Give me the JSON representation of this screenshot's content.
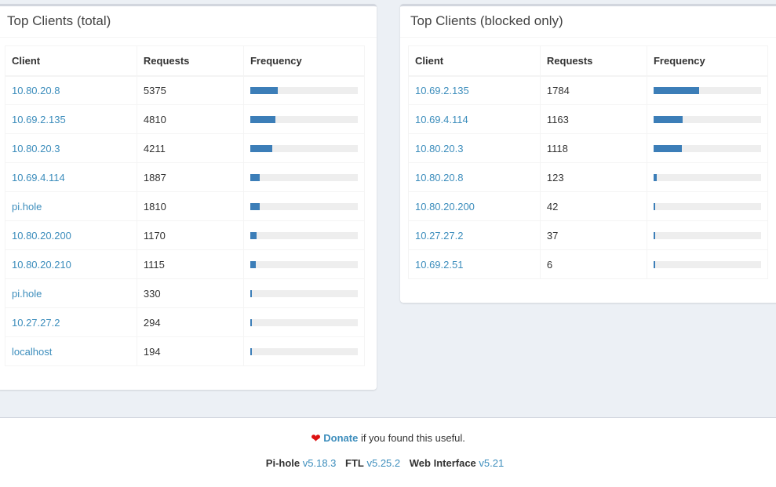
{
  "total": {
    "title": "Top Clients (total)",
    "headers": [
      "Client",
      "Requests",
      "Frequency"
    ],
    "rows": [
      {
        "client": "10.80.20.8",
        "requests": "5375",
        "frequency": 0.258
      },
      {
        "client": "10.69.2.135",
        "requests": "4810",
        "frequency": 0.231
      },
      {
        "client": "10.80.20.3",
        "requests": "4211",
        "frequency": 0.202
      },
      {
        "client": "10.69.4.114",
        "requests": "1887",
        "frequency": 0.091
      },
      {
        "client": "pi.hole",
        "requests": "1810",
        "frequency": 0.087
      },
      {
        "client": "10.80.20.200",
        "requests": "1170",
        "frequency": 0.056
      },
      {
        "client": "10.80.20.210",
        "requests": "1115",
        "frequency": 0.054
      },
      {
        "client": "pi.hole",
        "requests": "330",
        "frequency": 0.016
      },
      {
        "client": "10.27.27.2",
        "requests": "294",
        "frequency": 0.014
      },
      {
        "client": "localhost",
        "requests": "194",
        "frequency": 0.009
      }
    ]
  },
  "blocked": {
    "title": "Top Clients (blocked only)",
    "headers": [
      "Client",
      "Requests",
      "Frequency"
    ],
    "rows": [
      {
        "client": "10.69.2.135",
        "requests": "1784",
        "frequency": 0.42
      },
      {
        "client": "10.69.4.114",
        "requests": "1163",
        "frequency": 0.273
      },
      {
        "client": "10.80.20.3",
        "requests": "1118",
        "frequency": 0.263
      },
      {
        "client": "10.80.20.8",
        "requests": "123",
        "frequency": 0.029
      },
      {
        "client": "10.80.20.200",
        "requests": "42",
        "frequency": 0.01
      },
      {
        "client": "10.27.27.2",
        "requests": "37",
        "frequency": 0.009
      },
      {
        "client": "10.69.2.51",
        "requests": "6",
        "frequency": 0.0014
      }
    ]
  },
  "footer": {
    "heart_icon": "heart-icon",
    "donate_label": "Donate",
    "donate_suffix": " if you found this useful.",
    "pihole_label": "Pi-hole",
    "pihole_version": "v5.18.3",
    "ftl_label": "FTL",
    "ftl_version": "v5.25.2",
    "web_label": "Web Interface",
    "web_version": "v5.21"
  },
  "colors": {
    "link": "#3c8dbc",
    "bar": "#3c7eb8",
    "bar_bg": "#eeeeee",
    "heart": "#dd1111"
  }
}
